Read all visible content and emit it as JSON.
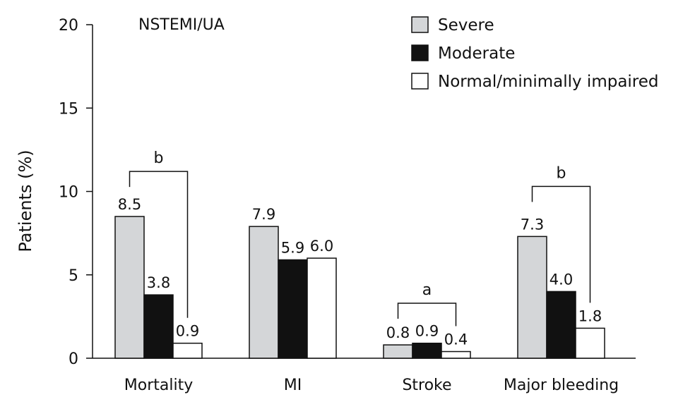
{
  "chart_data": {
    "type": "bar",
    "title": "NSTEMI/UA",
    "xlabel": "",
    "ylabel": "Patients (%)",
    "ylim": [
      0,
      20
    ],
    "yticks": [
      0,
      5,
      10,
      15,
      20
    ],
    "grid": false,
    "legend_position": "top-right",
    "categories": [
      "Mortality",
      "MI",
      "Stroke",
      "Major bleeding"
    ],
    "series": [
      {
        "name": "Severe",
        "color": "#d4d6d8",
        "values": [
          8.5,
          7.9,
          0.8,
          7.3
        ],
        "labels": [
          "8.5",
          "7.9",
          "0.8",
          "7.3"
        ]
      },
      {
        "name": "Moderate",
        "color": "#111111",
        "values": [
          3.8,
          5.9,
          0.9,
          4.0
        ],
        "labels": [
          "3.8",
          "5.9",
          "0.9",
          "4.0"
        ]
      },
      {
        "name": "Normal/minimally impaired",
        "color": "#ffffff",
        "values": [
          0.9,
          6.0,
          0.4,
          1.8
        ],
        "labels": [
          "0.9",
          "6.0",
          "0.4",
          "1.8"
        ]
      }
    ],
    "annotations": [
      {
        "category": "Mortality",
        "label": "b",
        "from_series": 0,
        "to_series": 2,
        "level": 11.2
      },
      {
        "category": "Stroke",
        "label": "a",
        "from_series": 0,
        "to_series": 2,
        "level": 3.3
      },
      {
        "category": "Major bleeding",
        "label": "b",
        "from_series": 0,
        "to_series": 2,
        "level": 10.3
      }
    ]
  }
}
